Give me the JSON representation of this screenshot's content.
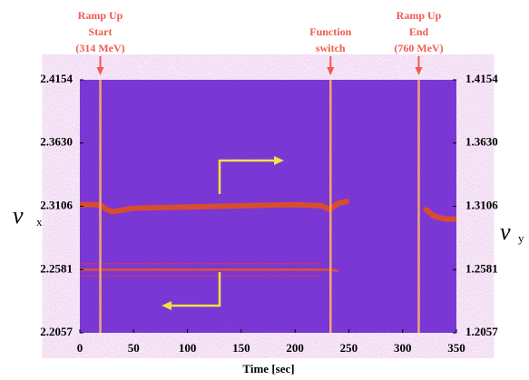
{
  "chart_data": {
    "type": "spectrogram",
    "xlabel": "Time [sec]",
    "ylabel": {
      "symbol": "ν",
      "sub": "x"
    },
    "y2label": {
      "symbol": "ν",
      "sub": "y"
    },
    "xlim": [
      0,
      350
    ],
    "xticks": [
      0,
      50,
      100,
      150,
      200,
      250,
      300,
      350
    ],
    "ylim": [
      2.2057,
      2.4154
    ],
    "yticks": [
      2.2057,
      2.2581,
      2.3106,
      {
        "value": 2.363,
        "label": "2.3630"
      },
      2.4154
    ],
    "y2lim": [
      1.2057,
      1.4154
    ],
    "y2ticks": [
      1.2057,
      1.2581,
      1.3106,
      {
        "value": 1.363,
        "label": "1.3630"
      },
      1.4154
    ],
    "background": "#6a30d6",
    "x": [
      0,
      15,
      20,
      25,
      30,
      50,
      100,
      150,
      200,
      225,
      232,
      240,
      250,
      260,
      310,
      320,
      330,
      340,
      350
    ],
    "series": [
      {
        "color": "#e2501c",
        "width": 6,
        "values": [
          2.312,
          2.312,
          2.311,
          2.308,
          2.306,
          2.309,
          2.31,
          2.311,
          2.312,
          2.311,
          2.308,
          2.313,
          2.315,
          null,
          null,
          2.309,
          2.302,
          2.3,
          2.3
        ]
      },
      {
        "color": "#e8561e",
        "width": 2.5,
        "values": [
          2.258,
          2.258,
          2.258,
          2.258,
          2.258,
          2.258,
          2.258,
          2.258,
          2.258,
          2.258,
          2.258,
          2.257,
          null,
          null,
          null,
          null,
          null,
          null,
          null
        ]
      },
      {
        "color": "#c0386a",
        "width": 1.5,
        "values": [
          2.263,
          2.263,
          2.263,
          2.263,
          2.263,
          2.263,
          2.263,
          2.263,
          2.263,
          2.263,
          null,
          null,
          null,
          null,
          null,
          null,
          null,
          null,
          null
        ]
      },
      {
        "color": "#c0386a",
        "width": 1.5,
        "values": [
          2.253,
          2.253,
          2.253,
          2.253,
          2.253,
          2.253,
          2.253,
          2.253,
          2.253,
          2.253,
          null,
          null,
          null,
          null,
          null,
          null,
          null,
          null,
          null
        ]
      }
    ],
    "events": [
      {
        "x": 19,
        "label": [
          "Ramp Up",
          "Start",
          "(314 MeV)"
        ]
      },
      {
        "x": 233,
        "label": [
          "Function",
          "switch"
        ]
      },
      {
        "x": 315,
        "label": [
          "Ramp Up",
          "End",
          "(760 MeV)"
        ]
      }
    ]
  }
}
